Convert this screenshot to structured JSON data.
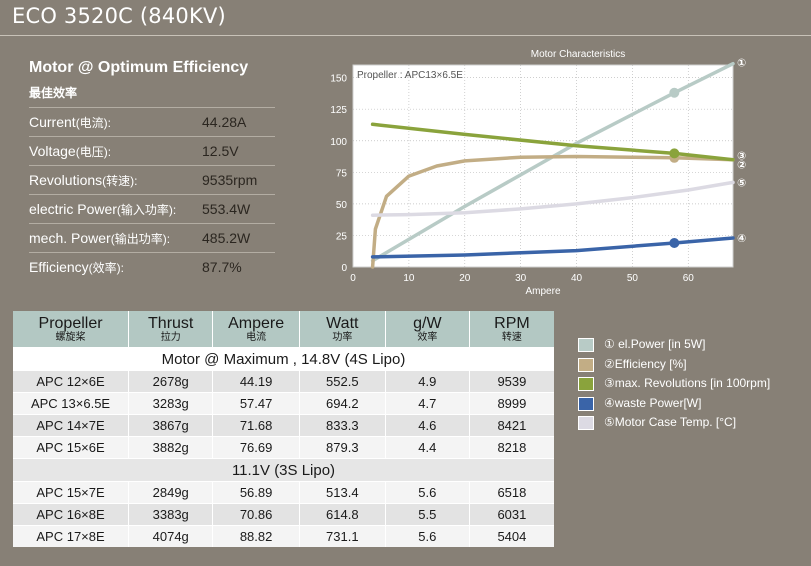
{
  "title": "ECO 3520C (840KV)",
  "spec": {
    "heading": "Motor @ Optimum Efficiency",
    "subheading": "最佳效率",
    "rows": [
      {
        "label": "Current",
        "cn": "(电流):",
        "value": "44.28A"
      },
      {
        "label": "Voltage",
        "cn": "(电压):",
        "value": "12.5V"
      },
      {
        "label": "Revolutions",
        "cn": "(转速):",
        "value": "9535rpm"
      },
      {
        "label": "electric Power",
        "cn": "(输入功率):",
        "value": "553.4W"
      },
      {
        "label": "mech. Power",
        "cn": "(输出功率):",
        "value": "485.2W"
      },
      {
        "label": "Efficiency",
        "cn": "(效率):",
        "value": "87.7%"
      }
    ]
  },
  "chart_data": {
    "type": "line",
    "title": "Motor Characteristics",
    "annotation": "Propeller : APC13×6.5E",
    "xlabel": "Ampere",
    "xlim": [
      0,
      68
    ],
    "ylim": [
      0,
      160
    ],
    "xticks": [
      0,
      10,
      20,
      30,
      40,
      50,
      60
    ],
    "yticks": [
      0,
      25,
      50,
      75,
      100,
      125,
      150
    ],
    "grid": "dotted",
    "operating_point_x": 57.5,
    "series": [
      {
        "marker": "①",
        "color": "#b8cbc6",
        "x": [
          3.5,
          20,
          40,
          57.5,
          68
        ],
        "y": [
          5,
          48,
          98,
          138,
          161
        ]
      },
      {
        "marker": "②",
        "color": "#c2ad85",
        "x": [
          3.5,
          4,
          6,
          10,
          15,
          20,
          30,
          40,
          50,
          57.5,
          68
        ],
        "y": [
          0,
          30,
          56,
          72,
          80,
          84,
          87,
          87.5,
          87,
          86.5,
          85
        ]
      },
      {
        "marker": "③",
        "color": "#8aa33c",
        "x": [
          3.5,
          20,
          40,
          57.5,
          68
        ],
        "y": [
          113,
          105,
          96,
          90,
          85
        ]
      },
      {
        "marker": "④",
        "color": "#3a64a8",
        "x": [
          3.5,
          20,
          40,
          57.5,
          68
        ],
        "y": [
          8,
          9.5,
          13,
          19,
          23
        ]
      },
      {
        "marker": "⑤",
        "color": "#dcdae3",
        "x": [
          3.5,
          10,
          20,
          30,
          40,
          50,
          60,
          68
        ],
        "y": [
          41,
          41.5,
          43,
          46,
          50,
          55,
          61,
          67
        ]
      }
    ]
  },
  "table": {
    "headers": [
      {
        "en": "Propeller",
        "cn": "螺旋桨"
      },
      {
        "en": "Thrust",
        "cn": "拉力"
      },
      {
        "en": "Ampere",
        "cn": "电流"
      },
      {
        "en": "Watt",
        "cn": "功率"
      },
      {
        "en": "g/W",
        "cn": "效率"
      },
      {
        "en": "RPM",
        "cn": "转速"
      }
    ],
    "section1": "Motor @ Maximum , 14.8V (4S Lipo)",
    "rows1": [
      [
        "APC 12×6E",
        "2678g",
        "44.19",
        "552.5",
        "4.9",
        "9539"
      ],
      [
        "APC 13×6.5E",
        "3283g",
        "57.47",
        "694.2",
        "4.7",
        "8999"
      ],
      [
        "APC 14×7E",
        "3867g",
        "71.68",
        "833.3",
        "4.6",
        "8421"
      ],
      [
        "APC 15×6E",
        "3882g",
        "76.69",
        "879.3",
        "4.4",
        "8218"
      ]
    ],
    "section2": "11.1V (3S Lipo)",
    "rows2": [
      [
        "APC 15×7E",
        "2849g",
        "56.89",
        "513.4",
        "5.6",
        "6518"
      ],
      [
        "APC 16×8E",
        "3383g",
        "70.86",
        "614.8",
        "5.5",
        "6031"
      ],
      [
        "APC 17×8E",
        "4074g",
        "88.82",
        "731.1",
        "5.6",
        "5404"
      ]
    ]
  },
  "legend": [
    {
      "label": "① el.Power [in 5W]",
      "color": "#b8cbc6"
    },
    {
      "label": "②Efficiency [%]",
      "color": "#c2ad85"
    },
    {
      "label": "③max. Revolutions [in 100rpm]",
      "color": "#8aa33c"
    },
    {
      "label": "④waste Power[W]",
      "color": "#3a64a8"
    },
    {
      "label": "⑤Motor Case Temp. [°C]",
      "color": "#dcdae3"
    }
  ]
}
